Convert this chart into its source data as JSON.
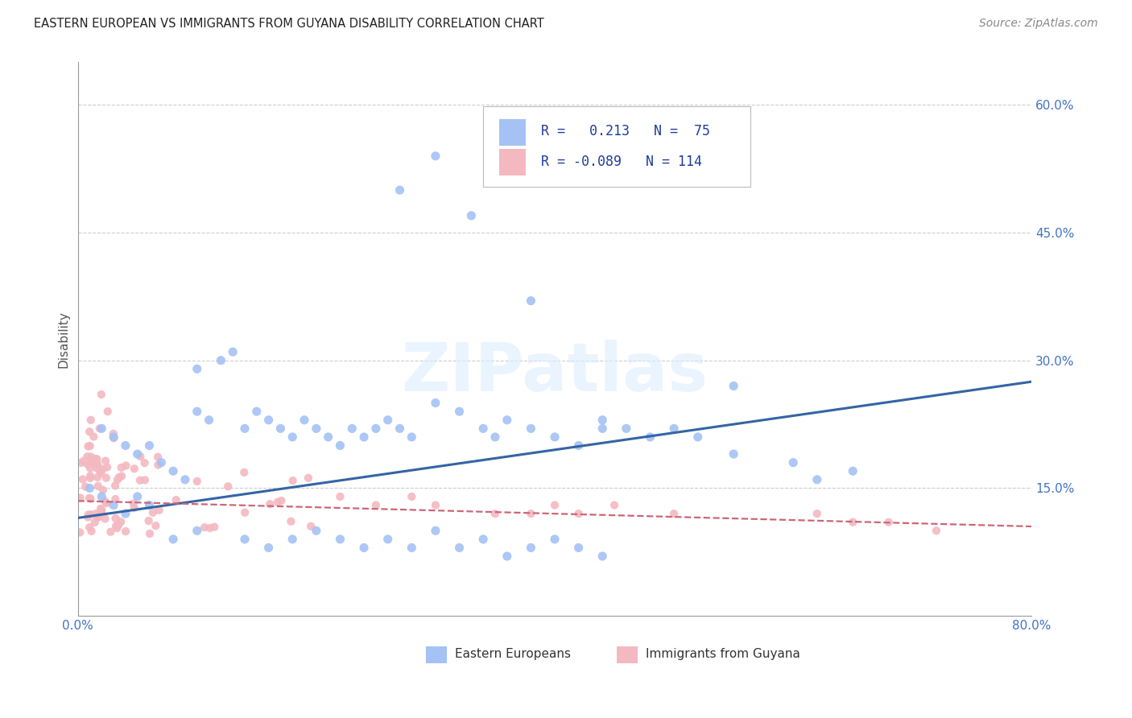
{
  "title": "EASTERN EUROPEAN VS IMMIGRANTS FROM GUYANA DISABILITY CORRELATION CHART",
  "source": "Source: ZipAtlas.com",
  "ylabel": "Disability",
  "xlim": [
    0.0,
    0.8
  ],
  "ylim": [
    0.0,
    0.65
  ],
  "xticks": [
    0.0,
    0.2,
    0.4,
    0.6,
    0.8
  ],
  "xticklabels": [
    "0.0%",
    "",
    "",
    "",
    "80.0%"
  ],
  "yticks": [
    0.15,
    0.3,
    0.45,
    0.6
  ],
  "yticklabels": [
    "15.0%",
    "30.0%",
    "45.0%",
    "60.0%"
  ],
  "watermark": "ZIPatlas",
  "blue_color": "#a4c2f4",
  "pink_color": "#f4b8c1",
  "blue_line_color": "#3465a4",
  "pink_line_color": "#cc6677",
  "grid_color": "#cccccc",
  "background_color": "#ffffff",
  "blue_line_x0": 0.0,
  "blue_line_y0": 0.115,
  "blue_line_x1": 0.8,
  "blue_line_y1": 0.275,
  "pink_line_x0": 0.0,
  "pink_line_y0": 0.135,
  "pink_line_x1": 0.8,
  "pink_line_y1": 0.105
}
